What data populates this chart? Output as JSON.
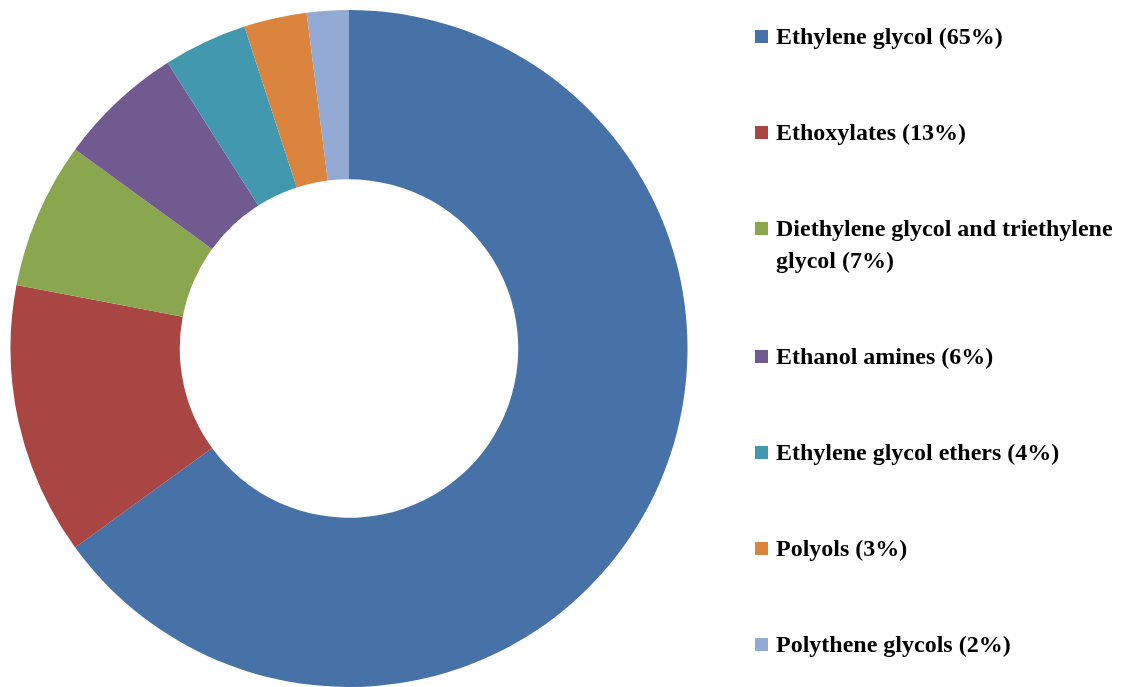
{
  "chart_data": {
    "type": "donut",
    "categories": [
      "Ethylene glycol (65%)",
      "Ethoxylates (13%)",
      "Diethylene glycol and triethylene glycol (7%)",
      "Ethanol amines (6%)",
      "Ethylene glycol ethers (4%)",
      "Polyols (3%)",
      "Polythene glycols (2%)"
    ],
    "values": [
      65,
      13,
      7,
      6,
      4,
      3,
      2
    ],
    "colors": [
      "#4672a8",
      "#a94643",
      "#8aa64f",
      "#715a8f",
      "#4298ae",
      "#db843d",
      "#93aad4"
    ],
    "legend": "right"
  }
}
